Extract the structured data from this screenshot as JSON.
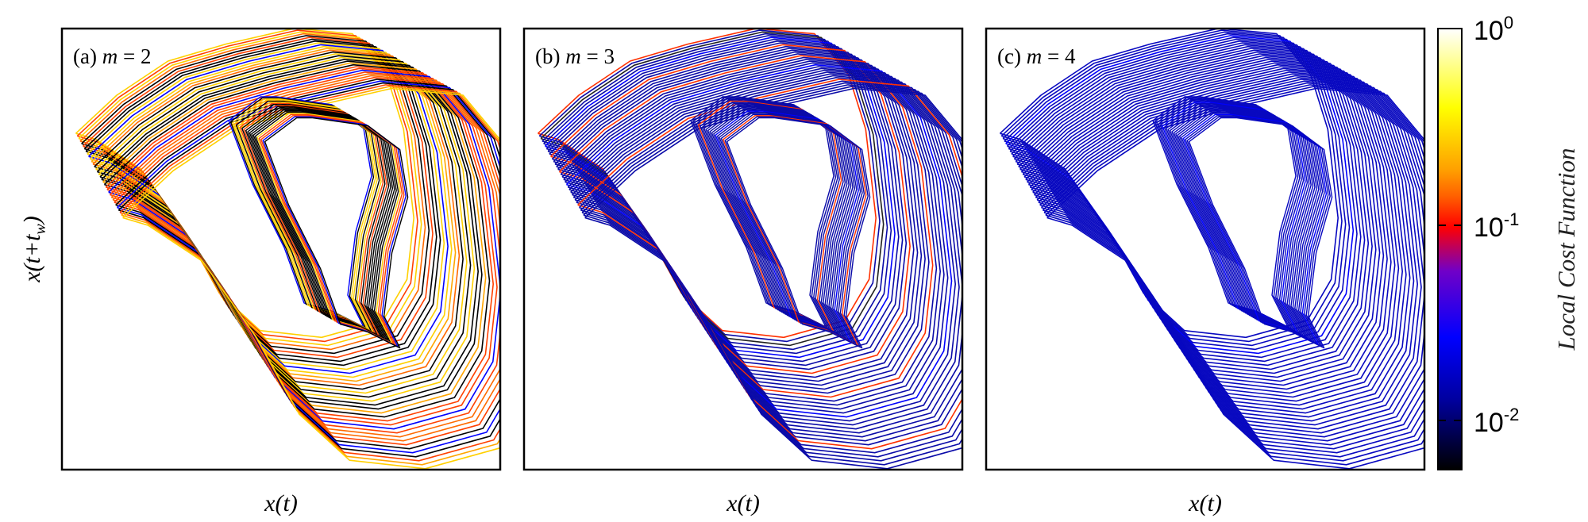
{
  "figure": {
    "panels": [
      {
        "label_prefix": "(a) ",
        "label_var": "m",
        "label_eq": " = 2",
        "xlabel": "x(t)",
        "ylabel": "x(t+t",
        "ylabel_sub": "w",
        "ylabel_close": ")"
      },
      {
        "label_prefix": "(b) ",
        "label_var": "m",
        "label_eq": " = 3",
        "xlabel": "x(t)"
      },
      {
        "label_prefix": "(c) ",
        "label_var": "m",
        "label_eq": " = 4",
        "xlabel": "x(t)"
      }
    ],
    "colorbar": {
      "label": "Local Cost Function",
      "ticks": [
        {
          "base": "10",
          "exp": "0",
          "value": 1
        },
        {
          "base": "10",
          "exp": "-1",
          "value": 0.1
        },
        {
          "base": "10",
          "exp": "-2",
          "value": 0.01
        }
      ],
      "scale": "log",
      "colors": [
        "#000000",
        "#0000ff",
        "#ff0000",
        "#ffa500",
        "#ffff00",
        "#ffffff"
      ]
    }
  },
  "chart_data": [
    {
      "type": "scatter",
      "title": "(a) m = 2",
      "xlabel": "x(t)",
      "ylabel": "x(t+t_w)",
      "series": [
        {
          "name": "",
          "values": []
        }
      ],
      "color_scale": "log"
    },
    {
      "type": "scatter",
      "title": "(b) m = 3",
      "xlabel": "x(t)",
      "ylabel": "",
      "series": [
        {
          "name": "",
          "values": []
        }
      ],
      "color_scale": "log"
    },
    {
      "type": "scatter",
      "title": "(c) m = 4",
      "xlabel": "x(t)",
      "ylabel": "",
      "series": [
        {
          "name": "",
          "values": []
        }
      ],
      "color_scale": "log"
    }
  ]
}
